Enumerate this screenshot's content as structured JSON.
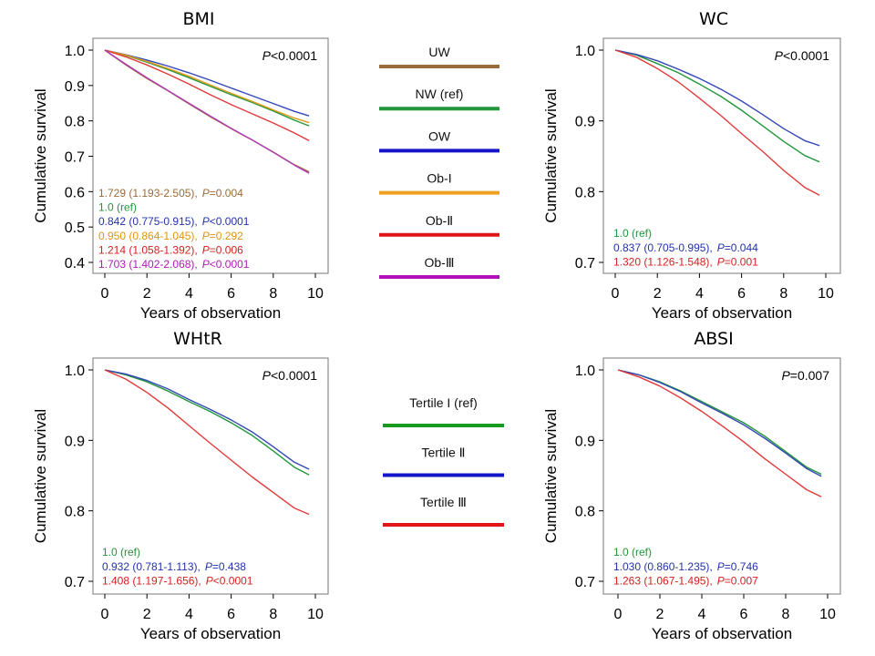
{
  "chart_data": [
    {
      "type": "line",
      "title": "BMI",
      "xlabel": "Years of observation",
      "ylabel": "Cumulative survival",
      "xlim": [
        0,
        10
      ],
      "ylim": [
        0.4,
        1.0
      ],
      "xticks": [
        0,
        2,
        4,
        6,
        8,
        10
      ],
      "yticks": [
        0.4,
        0.5,
        0.6,
        0.7,
        0.8,
        0.9,
        1.0
      ],
      "pvalue": {
        "prefix": "P",
        "text": "<0.0001"
      },
      "series": [
        {
          "name": "UW",
          "color": "#9B6B3A",
          "x": [
            0,
            1,
            2,
            3,
            4,
            5,
            6,
            7,
            8,
            9,
            9.7
          ],
          "y": [
            1.0,
            0.958,
            0.92,
            0.885,
            0.848,
            0.812,
            0.778,
            0.746,
            0.712,
            0.676,
            0.656
          ]
        },
        {
          "name": "NW (ref)",
          "color": "#22963A",
          "x": [
            0,
            1,
            2,
            3,
            4,
            5,
            6,
            7,
            8,
            9,
            9.7
          ],
          "y": [
            1.0,
            0.985,
            0.966,
            0.945,
            0.922,
            0.898,
            0.874,
            0.852,
            0.828,
            0.802,
            0.786
          ]
        },
        {
          "name": "OW",
          "color": "#3347B8",
          "x": [
            0,
            1,
            2,
            3,
            4,
            5,
            6,
            7,
            8,
            9,
            9.7
          ],
          "y": [
            1.0,
            0.987,
            0.972,
            0.955,
            0.936,
            0.915,
            0.893,
            0.871,
            0.849,
            0.827,
            0.814
          ]
        },
        {
          "name": "Ob-I",
          "color": "#E39A1A",
          "x": [
            0,
            1,
            2,
            3,
            4,
            5,
            6,
            7,
            8,
            9,
            9.7
          ],
          "y": [
            1.0,
            0.986,
            0.968,
            0.948,
            0.926,
            0.902,
            0.878,
            0.855,
            0.831,
            0.808,
            0.795
          ]
        },
        {
          "name": "Ob-II",
          "color": "#E23A3A",
          "x": [
            0,
            1,
            2,
            3,
            4,
            5,
            6,
            7,
            8,
            9,
            9.7
          ],
          "y": [
            1.0,
            0.981,
            0.958,
            0.932,
            0.904,
            0.874,
            0.846,
            0.82,
            0.794,
            0.766,
            0.744
          ]
        },
        {
          "name": "Ob-III",
          "color": "#B03AB8",
          "x": [
            0,
            1,
            2,
            3,
            4,
            5,
            6,
            7,
            8,
            9,
            9.7
          ],
          "y": [
            1.0,
            0.96,
            0.922,
            0.886,
            0.85,
            0.814,
            0.779,
            0.746,
            0.711,
            0.675,
            0.652
          ]
        }
      ],
      "hazard_ratios": [
        {
          "color": "#9B6B3A",
          "text": "1.729 (1.193-2.505),",
          "p_prefix": "P",
          "p_text": "=0.004"
        },
        {
          "color": "#22963A",
          "text": "1.0 (ref)",
          "p_prefix": "",
          "p_text": ""
        },
        {
          "color": "#2233AA",
          "text": "0.842 (0.775-0.915),",
          "p_prefix": "P",
          "p_text": "<0.0001"
        },
        {
          "color": "#E0940F",
          "text": "0.950 (0.864-1.045),",
          "p_prefix": "P",
          "p_text": "=0.292"
        },
        {
          "color": "#D42020",
          "text": "1.214 (1.058-1.392),",
          "p_prefix": "P",
          "p_text": "=0.006"
        },
        {
          "color": "#B019B8",
          "text": "1.703 (1.402-2.068),",
          "p_prefix": "P",
          "p_text": "<0.0001"
        }
      ]
    },
    {
      "type": "line",
      "title": "WC",
      "xlabel": "Years of observation",
      "ylabel": "Cumulative survival",
      "xlim": [
        0,
        10
      ],
      "ylim": [
        0.7,
        1.0
      ],
      "xticks": [
        0,
        2,
        4,
        6,
        8,
        10
      ],
      "yticks": [
        0.7,
        0.8,
        0.9,
        1.0
      ],
      "pvalue": {
        "prefix": "P",
        "text": "<0.0001"
      },
      "series": [
        {
          "name": "Tertile I (ref)",
          "color": "#22963A",
          "x": [
            0,
            1,
            2,
            3,
            4,
            5,
            6,
            7,
            8,
            9,
            9.7
          ],
          "y": [
            1.0,
            0.993,
            0.981,
            0.968,
            0.952,
            0.935,
            0.915,
            0.893,
            0.871,
            0.851,
            0.842
          ]
        },
        {
          "name": "Tertile II",
          "color": "#3347B8",
          "x": [
            0,
            1,
            2,
            3,
            4,
            5,
            6,
            7,
            8,
            9,
            9.7
          ],
          "y": [
            1.0,
            0.994,
            0.985,
            0.973,
            0.96,
            0.945,
            0.928,
            0.909,
            0.889,
            0.872,
            0.865
          ]
        },
        {
          "name": "Tertile III",
          "color": "#E23A3A",
          "x": [
            0,
            1,
            2,
            3,
            4,
            5,
            6,
            7,
            8,
            9,
            9.7
          ],
          "y": [
            1.0,
            0.99,
            0.974,
            0.955,
            0.932,
            0.908,
            0.882,
            0.857,
            0.83,
            0.806,
            0.795
          ]
        }
      ],
      "hazard_ratios": [
        {
          "color": "#22963A",
          "text": "1.0 (ref)",
          "p_prefix": "",
          "p_text": ""
        },
        {
          "color": "#2233AA",
          "text": "0.837 (0.705-0.995),",
          "p_prefix": "P",
          "p_text": "=0.044"
        },
        {
          "color": "#D42020",
          "text": "1.320 (1.126-1.548),",
          "p_prefix": "P",
          "p_text": "=0.001"
        }
      ]
    },
    {
      "type": "line",
      "title": "WHtR",
      "xlabel": "Years of observation",
      "ylabel": "Cumulative survival",
      "xlim": [
        0,
        10
      ],
      "ylim": [
        0.7,
        1.0
      ],
      "xticks": [
        0,
        2,
        4,
        6,
        8,
        10
      ],
      "yticks": [
        0.7,
        0.8,
        0.9,
        1.0
      ],
      "pvalue": {
        "prefix": "P",
        "text": "<0.0001"
      },
      "series": [
        {
          "name": "Tertile I (ref)",
          "color": "#22963A",
          "x": [
            0,
            1,
            2,
            3,
            4,
            5,
            6,
            7,
            8,
            9,
            9.7
          ],
          "y": [
            1.0,
            0.993,
            0.983,
            0.97,
            0.955,
            0.941,
            0.925,
            0.907,
            0.885,
            0.862,
            0.851
          ]
        },
        {
          "name": "Tertile II",
          "color": "#3347B8",
          "x": [
            0,
            1,
            2,
            3,
            4,
            5,
            6,
            7,
            8,
            9,
            9.7
          ],
          "y": [
            1.0,
            0.994,
            0.985,
            0.973,
            0.958,
            0.944,
            0.929,
            0.912,
            0.891,
            0.869,
            0.859
          ]
        },
        {
          "name": "Tertile III",
          "color": "#E23A3A",
          "x": [
            0,
            1,
            2,
            3,
            4,
            5,
            6,
            7,
            8,
            9,
            9.7
          ],
          "y": [
            1.0,
            0.987,
            0.968,
            0.946,
            0.921,
            0.896,
            0.872,
            0.848,
            0.826,
            0.804,
            0.795
          ]
        }
      ],
      "hazard_ratios": [
        {
          "color": "#22963A",
          "text": "1.0 (ref)",
          "p_prefix": "",
          "p_text": ""
        },
        {
          "color": "#2233AA",
          "text": "0.932 (0.781-1.113),",
          "p_prefix": "P",
          "p_text": "=0.438"
        },
        {
          "color": "#D42020",
          "text": "1.408 (1.197-1.656),",
          "p_prefix": "P",
          "p_text": "<0.0001"
        }
      ]
    },
    {
      "type": "line",
      "title": "ABSI",
      "xlabel": "Years of observation",
      "ylabel": "Cumulative survival",
      "xlim": [
        0,
        10
      ],
      "ylim": [
        0.7,
        1.0
      ],
      "xticks": [
        0,
        2,
        4,
        6,
        8,
        10
      ],
      "yticks": [
        0.7,
        0.8,
        0.9,
        1.0
      ],
      "pvalue": {
        "prefix": "P",
        "text": "=0.007"
      },
      "series": [
        {
          "name": "Tertile I (ref)",
          "color": "#22963A",
          "x": [
            0,
            1,
            2,
            3,
            4,
            5,
            6,
            7,
            8,
            9,
            9.7
          ],
          "y": [
            1.0,
            0.993,
            0.983,
            0.97,
            0.955,
            0.94,
            0.925,
            0.906,
            0.884,
            0.862,
            0.852
          ]
        },
        {
          "name": "Tertile II",
          "color": "#3347B8",
          "x": [
            0,
            1,
            2,
            3,
            4,
            5,
            6,
            7,
            8,
            9,
            9.7
          ],
          "y": [
            1.0,
            0.993,
            0.982,
            0.969,
            0.953,
            0.938,
            0.922,
            0.903,
            0.882,
            0.86,
            0.849
          ]
        },
        {
          "name": "Tertile III",
          "color": "#E23A3A",
          "x": [
            0,
            1,
            2,
            3,
            4,
            5,
            6,
            7,
            8,
            9,
            9.7
          ],
          "y": [
            1.0,
            0.99,
            0.977,
            0.96,
            0.941,
            0.92,
            0.898,
            0.874,
            0.852,
            0.83,
            0.82
          ]
        }
      ],
      "hazard_ratios": [
        {
          "color": "#22963A",
          "text": "1.0 (ref)",
          "p_prefix": "",
          "p_text": ""
        },
        {
          "color": "#2233AA",
          "text": "1.030 (0.860-1.235),",
          "p_prefix": "P",
          "p_text": "=0.746"
        },
        {
          "color": "#D42020",
          "text": "1.263 (1.067-1.495),",
          "p_prefix": "P",
          "p_text": "=0.007"
        }
      ]
    }
  ],
  "legends": {
    "bmi": [
      {
        "label": "UW",
        "color": "#9B6B3A"
      },
      {
        "label": "NW (ref)",
        "color": "#22963A"
      },
      {
        "label": "OW",
        "color": "#1515C8"
      },
      {
        "label": "Ob-I",
        "color": "#F0A020"
      },
      {
        "label": "Ob-Ⅱ",
        "color": "#E01515"
      },
      {
        "label": "Ob-Ⅲ",
        "color": "#B010B8"
      }
    ],
    "tertiles": [
      {
        "label": "Tertile I (ref)",
        "color": "#159A20"
      },
      {
        "label": "Tertile Ⅱ",
        "color": "#1515C8"
      },
      {
        "label": "Tertile Ⅲ",
        "color": "#E01515"
      }
    ]
  }
}
